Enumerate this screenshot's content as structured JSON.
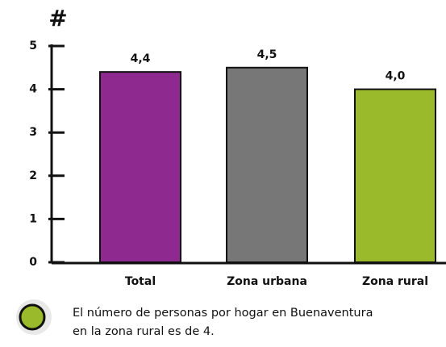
{
  "chart_data": {
    "type": "bar",
    "y_axis_label": "#",
    "categories": [
      "Total",
      "Zona urbana",
      "Zona rural"
    ],
    "values": [
      4.4,
      4.5,
      4.0
    ],
    "value_labels": [
      "4,4",
      "4,5",
      "4,0"
    ],
    "colors": [
      "#8e2a8f",
      "#777777",
      "#9aba2b"
    ],
    "ylim": [
      0,
      5
    ],
    "yticks": [
      0,
      1,
      2,
      3,
      4,
      5
    ],
    "annotation": [
      "El número de personas por hogar en Buenaventura",
      "en la zona rural es de 4."
    ]
  }
}
